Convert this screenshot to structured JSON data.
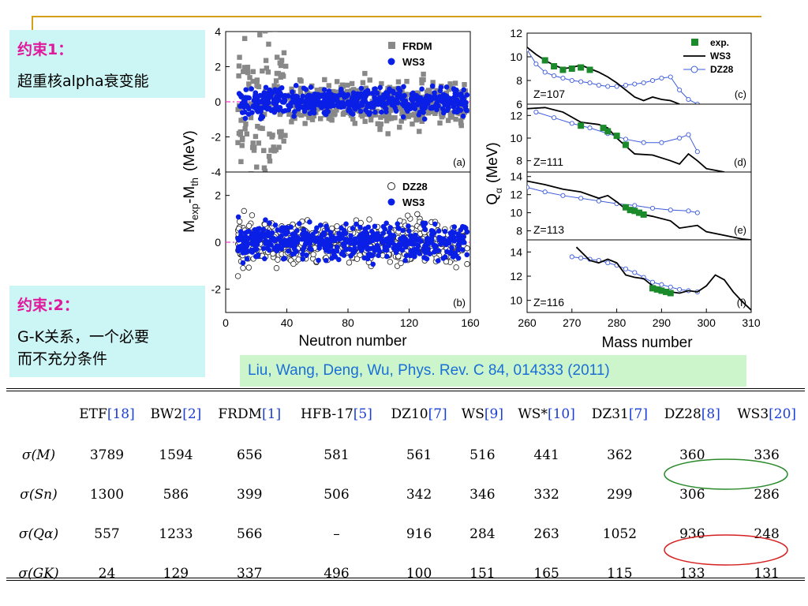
{
  "constraint1": {
    "heading": "约束1：",
    "text": "超重核alpha衰变能"
  },
  "constraint2": {
    "heading": "约束:2：",
    "text_lines": [
      "G-K关系，一个必要",
      "而不充分条件"
    ]
  },
  "citation": "Liu, Wang, Deng, Wu, Phys. Rev. C 84, 014333 (2011)",
  "colors": {
    "frdm": "#888888",
    "ws3": "#0a1fe6",
    "exp": "#1a8a2a",
    "dz28": "#3b5bdb",
    "zero_line": "#ff33cc",
    "green_ellipse": "#2a8a2a",
    "red_ellipse": "#d62020"
  },
  "chart_data": [
    {
      "id": "panel-a",
      "type": "scatter",
      "label": "(a)",
      "xlim": [
        0,
        160
      ],
      "ylim": [
        -4,
        4
      ],
      "yticks": [
        "-4",
        "-2",
        "0",
        "2",
        "4"
      ],
      "legend": [
        "FRDM",
        "WS3"
      ],
      "series": [
        {
          "name": "FRDM",
          "marker": "square",
          "spread": 1.1
        },
        {
          "name": "WS3",
          "marker": "circle",
          "spread": 0.45
        }
      ]
    },
    {
      "id": "panel-b",
      "type": "scatter",
      "label": "(b)",
      "xlim": [
        0,
        160
      ],
      "ylim": [
        -3,
        3
      ],
      "yticks": [
        "-2",
        "0",
        "2"
      ],
      "xticks": [
        "0",
        "40",
        "80",
        "120",
        "160"
      ],
      "legend": [
        "DZ28",
        "WS3"
      ],
      "series": [
        {
          "name": "DZ28",
          "marker": "open-circle",
          "spread": 0.55
        },
        {
          "name": "WS3",
          "marker": "circle",
          "spread": 0.45
        }
      ]
    },
    {
      "id": "panel-c",
      "type": "line",
      "label": "(c)",
      "zlabel": "Z=107",
      "xlim": [
        260,
        310
      ],
      "ylim": [
        6,
        12
      ],
      "yticks": [
        "6",
        "8",
        "10",
        "12"
      ],
      "legend": [
        "exp.",
        "WS3",
        "DZ28"
      ],
      "exp": {
        "x": [
          264,
          266,
          268,
          270,
          272,
          274
        ],
        "y": [
          9.7,
          9.2,
          8.9,
          9.0,
          9.1,
          8.9
        ]
      },
      "ws3": {
        "x": [
          260,
          262,
          264,
          266,
          268,
          270,
          272,
          274,
          276,
          278,
          280,
          282,
          284,
          286,
          288,
          290,
          292,
          294
        ],
        "y": [
          10.8,
          10.2,
          9.7,
          9.3,
          9.0,
          9.1,
          9.3,
          9.0,
          8.7,
          8.3,
          7.8,
          7.2,
          6.6,
          6.3,
          6.6,
          6.4,
          6.3,
          6.0
        ]
      },
      "dz28": {
        "x": [
          260,
          262,
          264,
          266,
          268,
          270,
          272,
          274,
          276,
          278,
          280,
          282,
          284,
          286,
          288,
          290,
          292,
          294,
          296,
          298
        ],
        "y": [
          10.6,
          9.4,
          8.7,
          8.4,
          8.2,
          8.0,
          7.9,
          7.8,
          7.6,
          7.5,
          7.5,
          7.6,
          7.7,
          7.8,
          8.0,
          8.2,
          8.3,
          7.2,
          6.4,
          6.0
        ]
      }
    },
    {
      "id": "panel-d",
      "type": "line",
      "label": "(d)",
      "zlabel": "Z=111",
      "xlim": [
        260,
        310
      ],
      "ylim": [
        7,
        13
      ],
      "yticks": [
        "8",
        "10",
        "12"
      ],
      "exp": {
        "x": [
          272,
          277,
          278,
          280,
          282
        ],
        "y": [
          11.1,
          10.9,
          10.6,
          10.2,
          9.4
        ]
      },
      "ws3": {
        "x": [
          260,
          264,
          268,
          272,
          276,
          278,
          280,
          282,
          284,
          288,
          292,
          294,
          296,
          298,
          300,
          304
        ],
        "y": [
          12.6,
          12.7,
          12.3,
          11.4,
          11.2,
          10.9,
          10.0,
          9.3,
          8.6,
          8.5,
          8.0,
          7.7,
          8.6,
          8.0,
          7.3,
          7.0
        ]
      },
      "dz28": {
        "x": [
          262,
          266,
          270,
          274,
          278,
          282,
          286,
          290,
          294,
          296,
          298
        ],
        "y": [
          12.3,
          11.8,
          11.3,
          10.9,
          10.4,
          9.9,
          9.6,
          9.6,
          10.0,
          10.3,
          8.8
        ]
      }
    },
    {
      "id": "panel-e",
      "type": "line",
      "label": "(e)",
      "zlabel": "Z=113",
      "xlim": [
        260,
        310
      ],
      "ylim": [
        7,
        14.5
      ],
      "yticks": [
        "8",
        "10",
        "12",
        "14"
      ],
      "exp": {
        "x": [
          282,
          283,
          284,
          285,
          286
        ],
        "y": [
          10.6,
          10.3,
          10.2,
          10.0,
          9.8
        ]
      },
      "ws3": {
        "x": [
          260,
          264,
          268,
          272,
          276,
          278,
          280,
          282,
          284,
          288,
          292,
          294,
          298,
          300,
          304,
          308,
          310
        ],
        "y": [
          13.5,
          13.1,
          12.6,
          12.3,
          11.6,
          11.9,
          11.2,
          10.4,
          10.0,
          9.6,
          9.1,
          8.3,
          8.6,
          7.9,
          7.5,
          7.1,
          7.0
        ]
      },
      "dz28": {
        "x": [
          260,
          264,
          268,
          272,
          276,
          280,
          284,
          288,
          292,
          296,
          298
        ],
        "y": [
          12.8,
          12.3,
          11.9,
          11.6,
          11.3,
          11.0,
          10.8,
          10.5,
          10.3,
          10.2,
          10.0
        ]
      }
    },
    {
      "id": "panel-f",
      "type": "line",
      "label": "(f)",
      "zlabel": "Z=116",
      "xlim": [
        260,
        310
      ],
      "ylim": [
        9,
        15
      ],
      "yticks": [
        "10",
        "12",
        "14"
      ],
      "xticks": [
        "260",
        "270",
        "280",
        "290",
        "300",
        "310"
      ],
      "exp": {
        "x": [
          288,
          289,
          290,
          291,
          292
        ],
        "y": [
          11.0,
          10.9,
          10.8,
          10.7,
          10.6
        ]
      },
      "ws3": {
        "x": [
          271,
          274,
          276,
          278,
          280,
          282,
          284,
          286,
          288,
          290,
          292,
          294,
          296,
          298,
          300,
          302,
          304,
          306,
          308,
          310
        ],
        "y": [
          14.4,
          13.3,
          13.1,
          13.4,
          13.1,
          12.1,
          11.9,
          11.8,
          11.2,
          11.0,
          10.7,
          10.6,
          10.8,
          10.7,
          11.2,
          12.1,
          11.7,
          10.7,
          9.9,
          9.2
        ]
      },
      "dz28": {
        "x": [
          270,
          272,
          274,
          276,
          278,
          280,
          282,
          284,
          286,
          288,
          290,
          292,
          294,
          296,
          298
        ],
        "y": [
          13.6,
          13.5,
          13.4,
          13.3,
          13.1,
          12.9,
          12.6,
          12.3,
          11.9,
          11.5,
          11.3,
          11.1,
          10.9,
          10.8,
          10.7
        ]
      }
    }
  ],
  "axis_labels": {
    "left_y": "M_exp-M_th (MeV)",
    "left_y_parts": {
      "m1": "M",
      "sub1": "exp",
      "dash": "-M",
      "sub2": "th",
      "unit": "(MeV)"
    },
    "left_x": "Neutron number",
    "right_y_parts": {
      "q": "Q",
      "sub": "α",
      "unit": "(MeV)"
    },
    "right_x": "Mass number"
  },
  "table": {
    "columns": [
      {
        "name": "ETF",
        "ref": "[18]"
      },
      {
        "name": "BW2",
        "ref": "[2]"
      },
      {
        "name": "FRDM",
        "ref": "[1]"
      },
      {
        "name": "HFB-17",
        "ref": "[5]"
      },
      {
        "name": "DZ10",
        "ref": "[7]"
      },
      {
        "name": "WS",
        "ref": "[9]"
      },
      {
        "name": "WS*",
        "ref": "[10]"
      },
      {
        "name": "DZ31",
        "ref": "[7]"
      },
      {
        "name": "DZ28",
        "ref": "[8]"
      },
      {
        "name": "WS3",
        "ref": "[20]"
      }
    ],
    "rows": [
      {
        "label": "σ(M)",
        "values": [
          "3789",
          "1594",
          "656",
          "581",
          "561",
          "516",
          "441",
          "362",
          "360",
          "336"
        ]
      },
      {
        "label": "σ(Sn)",
        "values": [
          "1300",
          "586",
          "399",
          "506",
          "342",
          "346",
          "332",
          "299",
          "306",
          "286"
        ]
      },
      {
        "label": "σ(Qα)",
        "values": [
          "557",
          "1233",
          "566",
          "–",
          "916",
          "284",
          "263",
          "1052",
          "936",
          "248"
        ]
      },
      {
        "label": "σ(GK)",
        "values": [
          "24",
          "129",
          "337",
          "496",
          "100",
          "151",
          "165",
          "115",
          "133",
          "131"
        ]
      }
    ]
  }
}
